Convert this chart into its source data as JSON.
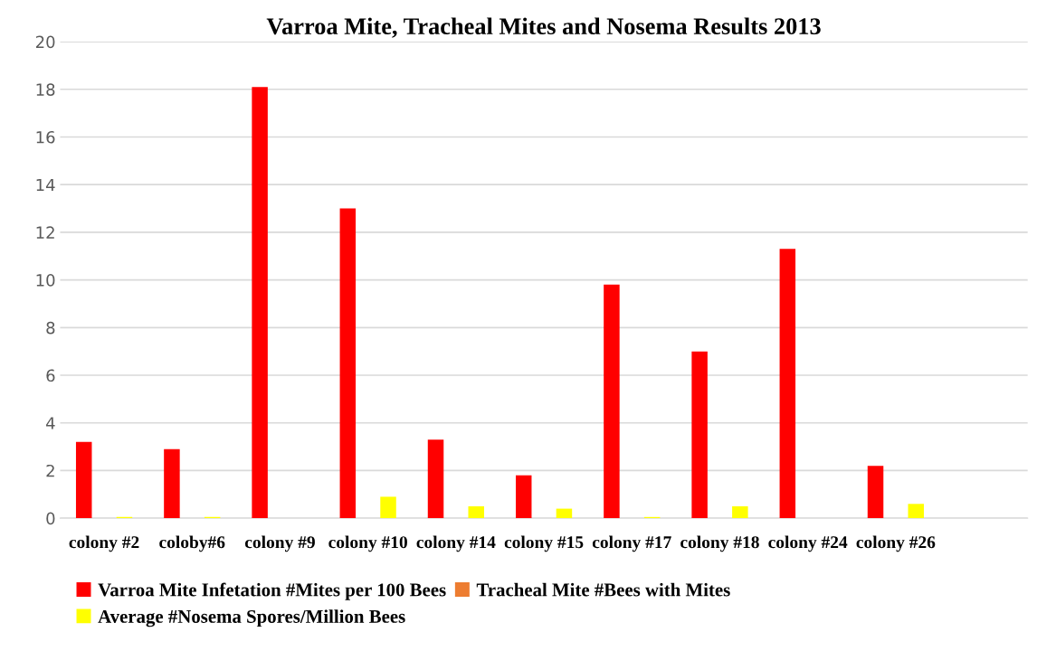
{
  "chart_data": {
    "type": "bar",
    "title": "Varroa Mite, Tracheal Mites and Nosema Results 2013",
    "categories": [
      "colony #2",
      "coloby#6",
      "colony #9",
      "colony #10",
      "colony #14",
      "colony #15",
      "colony #17",
      "colony #18",
      "colony #24",
      "colony #26",
      null
    ],
    "series": [
      {
        "name": "Varroa Mite Infetation #Mites per 100 Bees",
        "color": "#ff0000",
        "values": [
          3.2,
          2.9,
          18.1,
          13.0,
          3.3,
          1.8,
          9.8,
          7.0,
          11.3,
          2.2,
          null
        ]
      },
      {
        "name": "Tracheal Mite #Bees with Mites",
        "color": "#ed7d31",
        "values": [
          0,
          0,
          0,
          0,
          0,
          0,
          0,
          0,
          0,
          0,
          null
        ]
      },
      {
        "name": "Average #Nosema Spores/Million Bees",
        "color": "#ffff00",
        "values": [
          0.05,
          0.05,
          0,
          0.9,
          0.5,
          0.4,
          0.05,
          0.5,
          0,
          0.6,
          null
        ]
      }
    ],
    "ylim": [
      0,
      20
    ],
    "yticks": [
      0,
      2,
      4,
      6,
      8,
      10,
      12,
      14,
      16,
      18,
      20
    ],
    "grid": "y",
    "legend": "bottom"
  }
}
